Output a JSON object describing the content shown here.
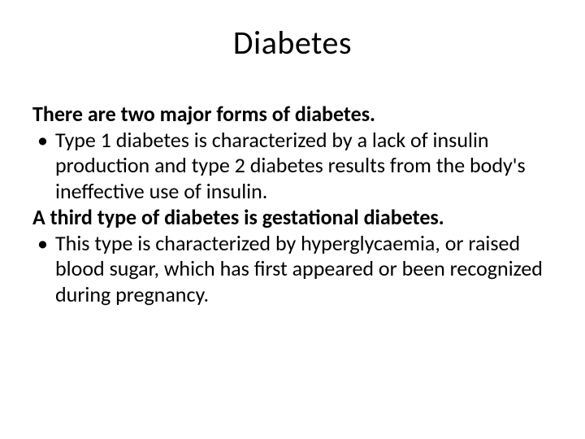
{
  "slide": {
    "title": "Diabetes",
    "heading1": "There are two major forms of diabetes.",
    "bullet1": "Type 1 diabetes is characterized by a lack of insulin production and type 2 diabetes results from the body's ineffective use of insulin.",
    "heading2": "A third type of diabetes is gestational diabetes.",
    "bullet2": "This type is characterized by hyperglycaemia, or raised blood sugar, which has first appeared or been recognized during pregnancy."
  },
  "style": {
    "background_color": "#ffffff",
    "text_color": "#000000",
    "title_fontsize": 40,
    "title_weight": 400,
    "body_fontsize": 26,
    "heading_weight": 700,
    "line_height": 1.22,
    "font_family": "Calibri"
  }
}
